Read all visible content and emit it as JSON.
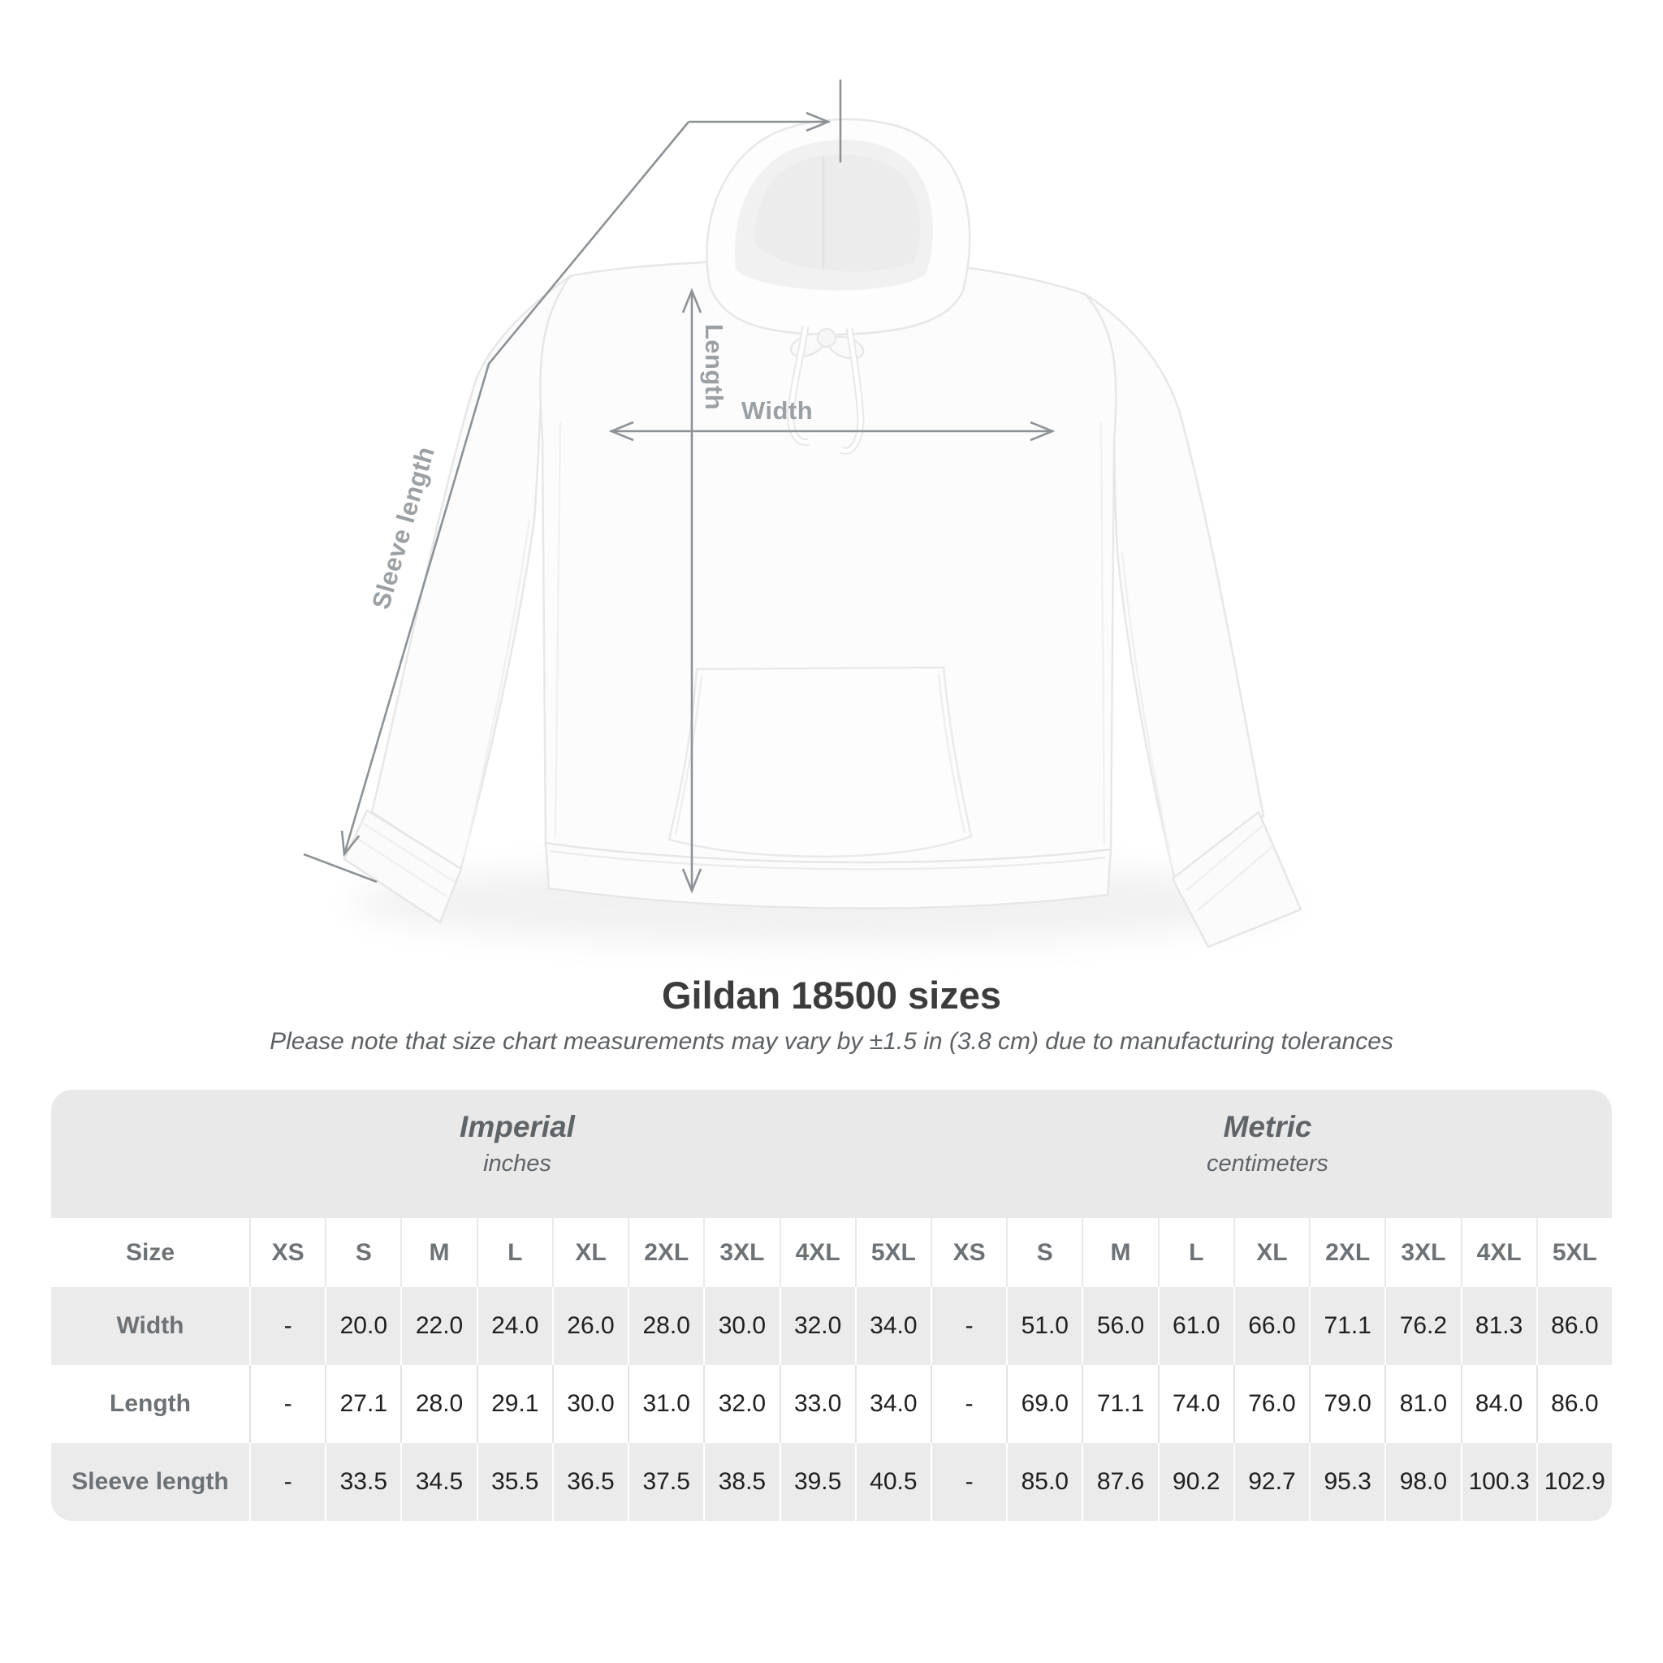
{
  "diagram": {
    "sleeve_length_label": "Sleeve length",
    "length_label": "Length",
    "width_label": "Width",
    "line_color": "#8d9296",
    "label_color": "#9aa0a4"
  },
  "title": "Gildan 18500 sizes",
  "subtitle": "Please note that size chart measurements may vary by ±1.5 in (3.8 cm) due to manufacturing tolerances",
  "table": {
    "groups": [
      {
        "name": "Imperial",
        "unit": "inches"
      },
      {
        "name": "Metric",
        "unit": "centimeters"
      }
    ],
    "size_header": "Size",
    "sizes": [
      "XS",
      "S",
      "M",
      "L",
      "XL",
      "2XL",
      "3XL",
      "4XL",
      "5XL"
    ],
    "rows": [
      {
        "label": "Width",
        "imperial": [
          "-",
          "20.0",
          "22.0",
          "24.0",
          "26.0",
          "28.0",
          "30.0",
          "32.0",
          "34.0"
        ],
        "metric": [
          "-",
          "51.0",
          "56.0",
          "61.0",
          "66.0",
          "71.1",
          "76.2",
          "81.3",
          "86.0"
        ]
      },
      {
        "label": "Length",
        "imperial": [
          "-",
          "27.1",
          "28.0",
          "29.1",
          "30.0",
          "31.0",
          "32.0",
          "33.0",
          "34.0"
        ],
        "metric": [
          "-",
          "69.0",
          "71.1",
          "74.0",
          "76.0",
          "79.0",
          "81.0",
          "84.0",
          "86.0"
        ]
      },
      {
        "label": "Sleeve length",
        "imperial": [
          "-",
          "33.5",
          "34.5",
          "35.5",
          "36.5",
          "37.5",
          "38.5",
          "39.5",
          "40.5"
        ],
        "metric": [
          "-",
          "85.0",
          "87.6",
          "90.2",
          "92.7",
          "95.3",
          "98.0",
          "100.3",
          "102.9"
        ]
      }
    ],
    "colors": {
      "band": "#e9e9e9",
      "gray_row": "#ebebeb",
      "header_text": "#6d7276",
      "value_text": "#202020"
    }
  }
}
